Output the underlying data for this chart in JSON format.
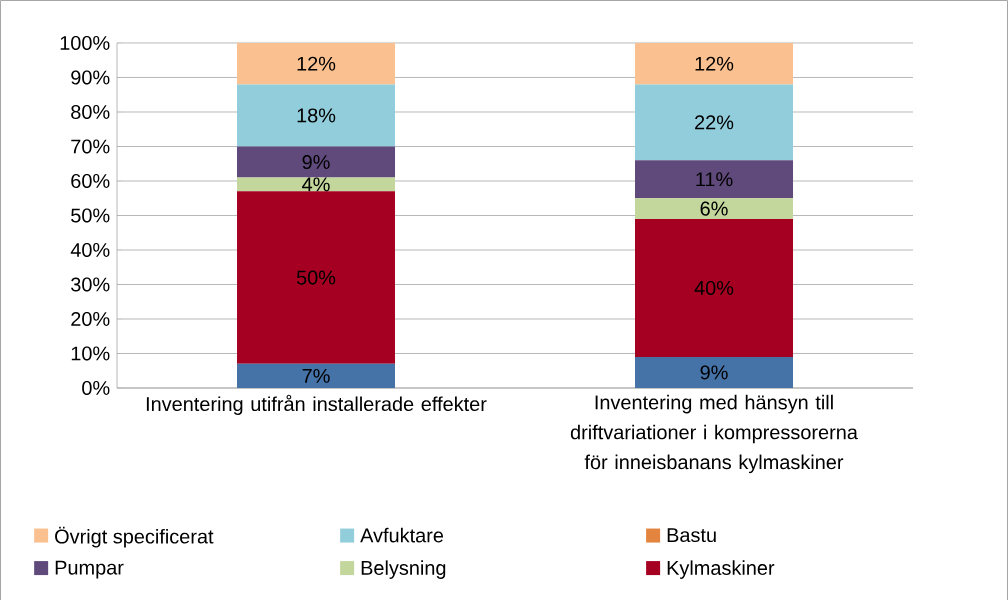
{
  "chart_data": {
    "type": "bar",
    "stacked": true,
    "categories": [
      "Inventering utifrån installerade effekter",
      "Inventering med hänsyn till driftvariationer i kompressorerna för inneisbanans kylmaskiner"
    ],
    "series": [
      {
        "color": "#4572a7",
        "values": [
          7,
          9
        ],
        "value_labels": [
          "7%",
          "9%"
        ]
      },
      {
        "name": "Kylmaskiner",
        "color": "#a50021",
        "values": [
          50,
          40
        ],
        "value_labels": [
          "50%",
          "40%"
        ]
      },
      {
        "name": "Belysning",
        "color": "#c3d69b",
        "values": [
          4,
          6
        ],
        "value_labels": [
          "4%",
          "6%"
        ]
      },
      {
        "name": "Pumpar",
        "color": "#604a7b",
        "values": [
          9,
          11
        ],
        "value_labels": [
          "9%",
          "11%"
        ]
      },
      {
        "name": "Bastu",
        "color": "#e3843f",
        "values": [
          0,
          0
        ],
        "value_labels": [
          null,
          null
        ]
      },
      {
        "name": "Avfuktare",
        "color": "#92cddc",
        "values": [
          18,
          22
        ],
        "value_labels": [
          "18%",
          "22%"
        ]
      },
      {
        "name": "Övrigt specificerat",
        "color": "#fac090",
        "values": [
          12,
          12
        ],
        "value_labels": [
          "12%",
          "12%"
        ]
      }
    ],
    "ylim": [
      0,
      100
    ],
    "yticks": [
      {
        "value": 0,
        "label": "0%"
      },
      {
        "value": 10,
        "label": "10%"
      },
      {
        "value": 20,
        "label": "20%"
      },
      {
        "value": 30,
        "label": "30%"
      },
      {
        "value": 40,
        "label": "40%"
      },
      {
        "value": 50,
        "label": "50%"
      },
      {
        "value": 60,
        "label": "60%"
      },
      {
        "value": 70,
        "label": "70%"
      },
      {
        "value": 80,
        "label": "80%"
      },
      {
        "value": 90,
        "label": "90%"
      },
      {
        "value": 100,
        "label": "100%"
      }
    ],
    "grid": "y",
    "legend": "bottom"
  }
}
